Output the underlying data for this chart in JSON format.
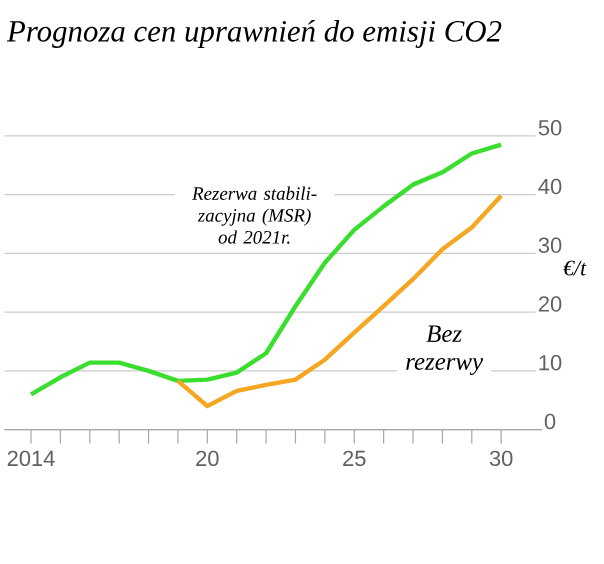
{
  "chart_data": {
    "type": "line",
    "title": "Prognoza cen uprawnień do emisji CO2",
    "ylabel": "€/t",
    "x": [
      2014,
      2015,
      2016,
      2017,
      2018,
      2019,
      2020,
      2021,
      2022,
      2023,
      2024,
      2025,
      2026,
      2027,
      2028,
      2029,
      2030
    ],
    "xlim": [
      2013.1,
      2031.8
    ],
    "xticks": [
      {
        "value": 2014,
        "label": "2014"
      },
      {
        "value": 2015,
        "label": null
      },
      {
        "value": 2016,
        "label": null
      },
      {
        "value": 2017,
        "label": null
      },
      {
        "value": 2018,
        "label": null
      },
      {
        "value": 2019,
        "label": null
      },
      {
        "value": 2020,
        "label": "20"
      },
      {
        "value": 2021,
        "label": null
      },
      {
        "value": 2022,
        "label": null
      },
      {
        "value": 2023,
        "label": null
      },
      {
        "value": 2024,
        "label": null
      },
      {
        "value": 2025,
        "label": "25"
      },
      {
        "value": 2026,
        "label": null
      },
      {
        "value": 2027,
        "label": null
      },
      {
        "value": 2028,
        "label": null
      },
      {
        "value": 2029,
        "label": null
      },
      {
        "value": 2030,
        "label": "30"
      }
    ],
    "ylim": [
      0,
      50
    ],
    "yticks": [
      0,
      10,
      20,
      30,
      40,
      50
    ],
    "grid": "y",
    "series": [
      {
        "name": "Rezerwa stabili-zacyjna (MSR) od 2021r.",
        "color": "#3ade2e",
        "values": [
          6,
          8.9,
          11.4,
          11.4,
          10,
          8.3,
          8.5,
          9.7,
          13,
          21,
          28.4,
          34,
          38,
          41.7,
          43.8,
          47,
          48.5
        ]
      },
      {
        "name": "Bez rezerwy",
        "color": "#f5a623",
        "values": [
          null,
          null,
          null,
          null,
          null,
          8.3,
          4,
          6.6,
          7.6,
          8.5,
          11.9,
          16.5,
          21,
          25.6,
          30.7,
          34.4,
          39.8
        ]
      }
    ]
  }
}
